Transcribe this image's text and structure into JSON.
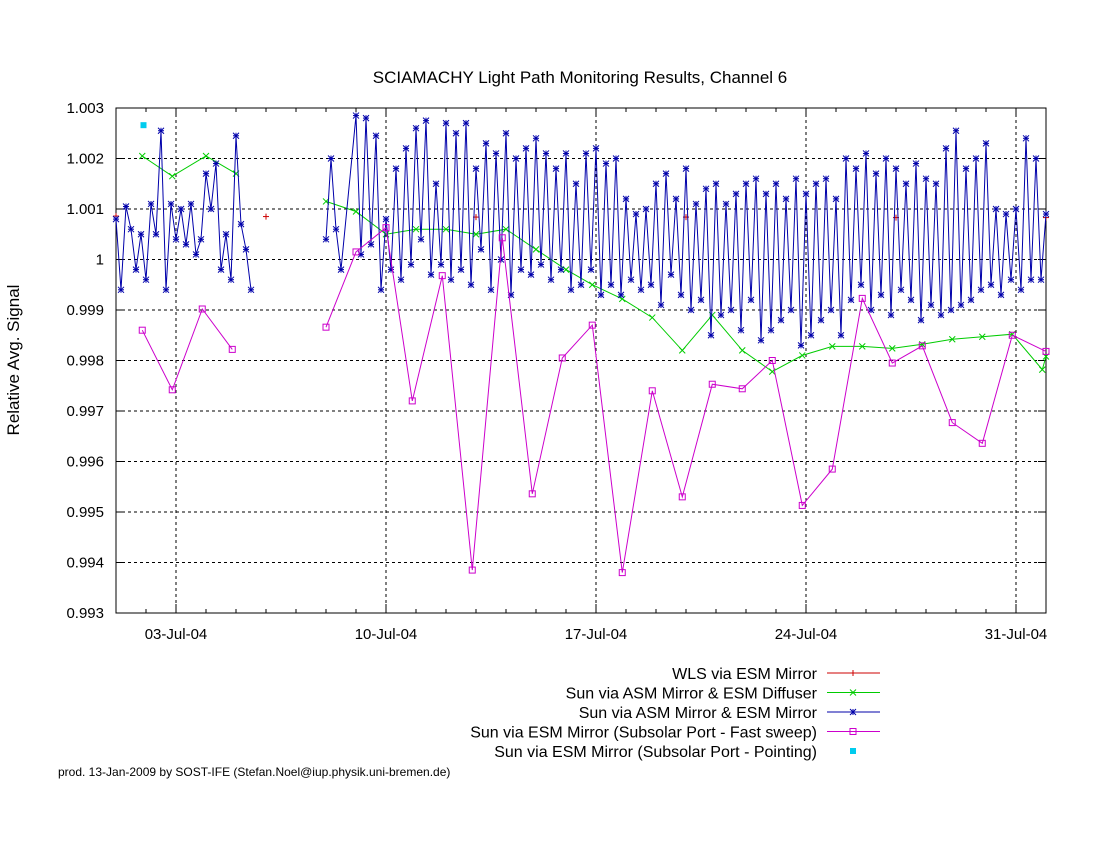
{
  "chart_data": {
    "type": "line",
    "title": "SCIAMACHY Light Path Monitoring Results, Channel 6",
    "ylabel": "Relative Avg. Signal",
    "xlabel": "",
    "ylim": [
      0.993,
      1.003
    ],
    "xlim": [
      "2004-07-01",
      "2004-08-01"
    ],
    "y_ticks": [
      "0.993",
      "0.994",
      "0.995",
      "0.996",
      "0.997",
      "0.998",
      "0.999",
      "1",
      "1.001",
      "1.002",
      "1.003"
    ],
    "x_ticks": [
      "03-Jul-04",
      "10-Jul-04",
      "17-Jul-04",
      "24-Jul-04",
      "31-Jul-04"
    ],
    "grid": true,
    "legend_position": "below",
    "series": [
      {
        "name": "WLS via ESM Mirror",
        "color": "#cc0000",
        "marker": "plus",
        "points": [
          [
            "2004-07-01",
            1.00086
          ],
          [
            "2004-07-06",
            1.00085
          ],
          [
            "2004-07-13",
            1.00084
          ],
          [
            "2004-07-20",
            1.00084
          ],
          [
            "2004-07-27",
            1.00083
          ],
          [
            "2004-08-01",
            1.00083
          ]
        ]
      },
      {
        "name": "Sun via ASM Mirror & ESM Diffuser",
        "color": "#00cc00",
        "marker": "x",
        "points": [
          [
            "2004-07-01T21:00",
            1.00205
          ],
          [
            "2004-07-02T21:00",
            1.00165
          ],
          [
            "2004-07-04T00:00",
            1.00205
          ],
          [
            "2004-07-05T00:00",
            1.0017
          ],
          [
            "2004-07-08T00:00",
            1.00115
          ],
          [
            "2004-07-09T00:00",
            1.00095
          ],
          [
            "2004-07-10T00:00",
            1.0005
          ],
          [
            "2004-07-11T00:00",
            1.0006
          ],
          [
            "2004-07-12T00:00",
            1.0006
          ],
          [
            "2004-07-13T00:00",
            1.0005
          ],
          [
            "2004-07-14T00:00",
            1.0006
          ],
          [
            "2004-07-15T00:00",
            1.0002
          ],
          [
            "2004-07-16T00:00",
            0.9998
          ],
          [
            "2004-07-16T21:00",
            0.9995
          ],
          [
            "2004-07-17T21:00",
            0.99922
          ],
          [
            "2004-07-18T21:00",
            0.99885
          ],
          [
            "2004-07-19T21:00",
            0.9982
          ],
          [
            "2004-07-20T21:00",
            0.9989
          ],
          [
            "2004-07-21T21:00",
            0.9982
          ],
          [
            "2004-07-22T21:00",
            0.99778
          ],
          [
            "2004-07-23T21:00",
            0.9981
          ],
          [
            "2004-07-24T21:00",
            0.99828
          ],
          [
            "2004-07-25T21:00",
            0.99828
          ],
          [
            "2004-07-26T21:00",
            0.99824
          ],
          [
            "2004-07-27T21:00",
            0.99832
          ],
          [
            "2004-07-28T21:00",
            0.99842
          ],
          [
            "2004-07-29T21:00",
            0.99847
          ],
          [
            "2004-07-30T21:00",
            0.99852
          ],
          [
            "2004-07-31T21:00",
            0.99782
          ],
          [
            "2004-08-01T00:00",
            0.99808
          ]
        ]
      },
      {
        "name": "Sun via ASM Mirror & ESM Mirror",
        "color": "#0000aa",
        "marker": "star",
        "points": [
          [
            "2004-07-01T00:00",
            1.0008
          ],
          [
            "2004-07-01T04:00",
            0.9994
          ],
          [
            "2004-07-01T08:00",
            1.00105
          ],
          [
            "2004-07-01T12:00",
            1.0006
          ],
          [
            "2004-07-01T16:00",
            0.9998
          ],
          [
            "2004-07-01T20:00",
            1.0005
          ],
          [
            "2004-07-02T00:00",
            0.9996
          ],
          [
            "2004-07-02T04:00",
            1.0011
          ],
          [
            "2004-07-02T08:00",
            1.0005
          ],
          [
            "2004-07-02T12:00",
            1.00255
          ],
          [
            "2004-07-02T16:00",
            0.9994
          ],
          [
            "2004-07-02T20:00",
            1.0011
          ],
          [
            "2004-07-03T00:00",
            1.0004
          ],
          [
            "2004-07-03T04:00",
            1.001
          ],
          [
            "2004-07-03T08:00",
            1.0003
          ],
          [
            "2004-07-03T12:00",
            1.0011
          ],
          [
            "2004-07-03T16:00",
            1.0001
          ],
          [
            "2004-07-03T20:00",
            1.0004
          ],
          [
            "2004-07-04T00:00",
            1.0017
          ],
          [
            "2004-07-04T04:00",
            1.001
          ],
          [
            "2004-07-04T08:00",
            1.0019
          ],
          [
            "2004-07-04T12:00",
            0.9998
          ],
          [
            "2004-07-04T16:00",
            1.0005
          ],
          [
            "2004-07-04T20:00",
            0.9996
          ],
          [
            "2004-07-05T00:00",
            1.00245
          ],
          [
            "2004-07-05T04:00",
            1.0007
          ],
          [
            "2004-07-05T08:00",
            1.0002
          ],
          [
            "2004-07-05T12:00",
            0.9994
          ],
          [
            "2004-07-08T00:00",
            1.0004
          ],
          [
            "2004-07-08T04:00",
            1.002
          ],
          [
            "2004-07-08T08:00",
            1.0006
          ],
          [
            "2004-07-08T12:00",
            0.9998
          ],
          [
            "2004-07-09T00:00",
            1.00285
          ],
          [
            "2004-07-09T04:00",
            1.0001
          ],
          [
            "2004-07-09T08:00",
            1.0028
          ],
          [
            "2004-07-09T12:00",
            1.0003
          ],
          [
            "2004-07-09T16:00",
            1.00245
          ],
          [
            "2004-07-09T20:00",
            0.9994
          ],
          [
            "2004-07-10T00:00",
            1.0008
          ],
          [
            "2004-07-10T04:00",
            0.9998
          ],
          [
            "2004-07-10T08:00",
            1.0018
          ],
          [
            "2004-07-10T12:00",
            0.9996
          ],
          [
            "2004-07-10T16:00",
            1.0022
          ],
          [
            "2004-07-10T20:00",
            0.9999
          ],
          [
            "2004-07-11T00:00",
            1.0026
          ],
          [
            "2004-07-11T04:00",
            1.0004
          ],
          [
            "2004-07-11T08:00",
            1.00275
          ],
          [
            "2004-07-11T12:00",
            0.9997
          ],
          [
            "2004-07-11T16:00",
            1.0015
          ],
          [
            "2004-07-11T20:00",
            0.9999
          ],
          [
            "2004-07-12T00:00",
            1.0027
          ],
          [
            "2004-07-12T04:00",
            0.9996
          ],
          [
            "2004-07-12T08:00",
            1.0025
          ],
          [
            "2004-07-12T12:00",
            0.9998
          ],
          [
            "2004-07-12T16:00",
            1.0027
          ],
          [
            "2004-07-12T20:00",
            0.9995
          ],
          [
            "2004-07-13T00:00",
            1.0018
          ],
          [
            "2004-07-13T04:00",
            1.0002
          ],
          [
            "2004-07-13T08:00",
            1.0023
          ],
          [
            "2004-07-13T12:00",
            0.9994
          ],
          [
            "2004-07-13T16:00",
            1.0021
          ],
          [
            "2004-07-13T20:00",
            1.0
          ],
          [
            "2004-07-14T00:00",
            1.0025
          ],
          [
            "2004-07-14T04:00",
            0.9993
          ],
          [
            "2004-07-14T08:00",
            1.002
          ],
          [
            "2004-07-14T12:00",
            0.9998
          ],
          [
            "2004-07-14T16:00",
            1.0022
          ],
          [
            "2004-07-14T20:00",
            0.9997
          ],
          [
            "2004-07-15T00:00",
            1.0024
          ],
          [
            "2004-07-15T04:00",
            0.9999
          ],
          [
            "2004-07-15T08:00",
            1.0021
          ],
          [
            "2004-07-15T12:00",
            0.9996
          ],
          [
            "2004-07-15T16:00",
            1.0018
          ],
          [
            "2004-07-15T20:00",
            0.9998
          ],
          [
            "2004-07-16T00:00",
            1.0021
          ],
          [
            "2004-07-16T04:00",
            0.9994
          ],
          [
            "2004-07-16T08:00",
            1.0015
          ],
          [
            "2004-07-16T12:00",
            0.9995
          ],
          [
            "2004-07-16T16:00",
            1.0021
          ],
          [
            "2004-07-16T20:00",
            0.9998
          ],
          [
            "2004-07-17T00:00",
            1.0022
          ],
          [
            "2004-07-17T04:00",
            0.9993
          ],
          [
            "2004-07-17T08:00",
            1.0019
          ],
          [
            "2004-07-17T12:00",
            0.9995
          ],
          [
            "2004-07-17T16:00",
            1.002
          ],
          [
            "2004-07-17T20:00",
            0.9993
          ],
          [
            "2004-07-18T00:00",
            1.0012
          ],
          [
            "2004-07-18T04:00",
            0.9996
          ],
          [
            "2004-07-18T08:00",
            1.0009
          ],
          [
            "2004-07-18T12:00",
            0.9994
          ],
          [
            "2004-07-18T16:00",
            1.001
          ],
          [
            "2004-07-18T20:00",
            0.9995
          ],
          [
            "2004-07-19T00:00",
            1.0015
          ],
          [
            "2004-07-19T04:00",
            0.9991
          ],
          [
            "2004-07-19T08:00",
            1.0017
          ],
          [
            "2004-07-19T12:00",
            0.9997
          ],
          [
            "2004-07-19T16:00",
            1.0012
          ],
          [
            "2004-07-19T20:00",
            0.9993
          ],
          [
            "2004-07-20T00:00",
            1.0018
          ],
          [
            "2004-07-20T04:00",
            0.999
          ],
          [
            "2004-07-20T08:00",
            1.0011
          ],
          [
            "2004-07-20T12:00",
            0.9992
          ],
          [
            "2004-07-20T16:00",
            1.0014
          ],
          [
            "2004-07-20T20:00",
            0.9985
          ],
          [
            "2004-07-21T00:00",
            1.0015
          ],
          [
            "2004-07-21T04:00",
            0.9989
          ],
          [
            "2004-07-21T08:00",
            1.0011
          ],
          [
            "2004-07-21T12:00",
            0.999
          ],
          [
            "2004-07-21T16:00",
            1.0013
          ],
          [
            "2004-07-21T20:00",
            0.9986
          ],
          [
            "2004-07-22T00:00",
            1.0015
          ],
          [
            "2004-07-22T04:00",
            0.9992
          ],
          [
            "2004-07-22T08:00",
            1.0016
          ],
          [
            "2004-07-22T12:00",
            0.9984
          ],
          [
            "2004-07-22T16:00",
            1.0013
          ],
          [
            "2004-07-22T20:00",
            0.9986
          ],
          [
            "2004-07-23T00:00",
            1.0015
          ],
          [
            "2004-07-23T04:00",
            0.9988
          ],
          [
            "2004-07-23T08:00",
            1.0012
          ],
          [
            "2004-07-23T12:00",
            0.999
          ],
          [
            "2004-07-23T16:00",
            1.0016
          ],
          [
            "2004-07-23T20:00",
            0.9983
          ],
          [
            "2004-07-24T00:00",
            1.0013
          ],
          [
            "2004-07-24T04:00",
            0.9985
          ],
          [
            "2004-07-24T08:00",
            1.0015
          ],
          [
            "2004-07-24T12:00",
            0.9988
          ],
          [
            "2004-07-24T16:00",
            1.0016
          ],
          [
            "2004-07-24T20:00",
            0.999
          ],
          [
            "2004-07-25T00:00",
            1.0012
          ],
          [
            "2004-07-25T04:00",
            0.9985
          ],
          [
            "2004-07-25T08:00",
            1.002
          ],
          [
            "2004-07-25T12:00",
            0.9992
          ],
          [
            "2004-07-25T16:00",
            1.0018
          ],
          [
            "2004-07-25T20:00",
            0.9995
          ],
          [
            "2004-07-26T00:00",
            1.0021
          ],
          [
            "2004-07-26T04:00",
            0.999
          ],
          [
            "2004-07-26T08:00",
            1.0017
          ],
          [
            "2004-07-26T12:00",
            0.9993
          ],
          [
            "2004-07-26T16:00",
            1.002
          ],
          [
            "2004-07-26T20:00",
            0.9989
          ],
          [
            "2004-07-27T00:00",
            1.0018
          ],
          [
            "2004-07-27T04:00",
            0.9994
          ],
          [
            "2004-07-27T08:00",
            1.0015
          ],
          [
            "2004-07-27T12:00",
            0.9992
          ],
          [
            "2004-07-27T16:00",
            1.0019
          ],
          [
            "2004-07-27T20:00",
            0.9988
          ],
          [
            "2004-07-28T00:00",
            1.0016
          ],
          [
            "2004-07-28T04:00",
            0.9991
          ],
          [
            "2004-07-28T08:00",
            1.0015
          ],
          [
            "2004-07-28T12:00",
            0.9989
          ],
          [
            "2004-07-28T16:00",
            1.0022
          ],
          [
            "2004-07-28T20:00",
            0.999
          ],
          [
            "2004-07-29T00:00",
            1.00255
          ],
          [
            "2004-07-29T04:00",
            0.9991
          ],
          [
            "2004-07-29T08:00",
            1.0018
          ],
          [
            "2004-07-29T12:00",
            0.9992
          ],
          [
            "2004-07-29T16:00",
            1.002
          ],
          [
            "2004-07-29T20:00",
            0.9994
          ],
          [
            "2004-07-30T00:00",
            1.0023
          ],
          [
            "2004-07-30T04:00",
            0.9995
          ],
          [
            "2004-07-30T08:00",
            1.001
          ],
          [
            "2004-07-30T12:00",
            0.9993
          ],
          [
            "2004-07-30T16:00",
            1.0009
          ],
          [
            "2004-07-30T20:00",
            0.9996
          ],
          [
            "2004-07-31T00:00",
            1.001
          ],
          [
            "2004-07-31T04:00",
            0.9994
          ],
          [
            "2004-07-31T08:00",
            1.0024
          ],
          [
            "2004-07-31T12:00",
            0.9996
          ],
          [
            "2004-07-31T16:00",
            1.002
          ],
          [
            "2004-07-31T20:00",
            0.9996
          ],
          [
            "2004-08-01T00:00",
            1.0009
          ]
        ]
      },
      {
        "name": "Sun via ESM Mirror (Subsolar Port - Fast sweep)",
        "color": "#cc00cc",
        "marker": "square",
        "points": [
          [
            "2004-07-01T21:00",
            0.9986
          ],
          [
            "2004-07-02T21:00",
            0.99742
          ],
          [
            "2004-07-03T21:00",
            0.99902
          ],
          [
            "2004-07-04T21:00",
            0.99822
          ],
          [
            "2004-07-08T00:00",
            0.99866
          ],
          [
            "2004-07-09T00:00",
            1.00015
          ],
          [
            "2004-07-10T00:00",
            1.00063
          ],
          [
            "2004-07-10T21:00",
            0.9972
          ],
          [
            "2004-07-11T21:00",
            0.99968
          ],
          [
            "2004-07-12T21:00",
            0.99385
          ],
          [
            "2004-07-13T21:00",
            1.00043
          ],
          [
            "2004-07-14T21:00",
            0.99536
          ],
          [
            "2004-07-15T21:00",
            0.99805
          ],
          [
            "2004-07-16T21:00",
            0.9987
          ],
          [
            "2004-07-17T21:00",
            0.9938
          ],
          [
            "2004-07-18T21:00",
            0.9974
          ],
          [
            "2004-07-19T21:00",
            0.9953
          ],
          [
            "2004-07-20T21:00",
            0.99753
          ],
          [
            "2004-07-21T21:00",
            0.99744
          ],
          [
            "2004-07-22T21:00",
            0.998
          ],
          [
            "2004-07-23T21:00",
            0.99513
          ],
          [
            "2004-07-24T21:00",
            0.99585
          ],
          [
            "2004-07-25T21:00",
            0.99923
          ],
          [
            "2004-07-26T21:00",
            0.99795
          ],
          [
            "2004-07-27T21:00",
            0.99829
          ],
          [
            "2004-07-28T21:00",
            0.99677
          ],
          [
            "2004-07-29T21:00",
            0.99636
          ],
          [
            "2004-07-30T21:00",
            0.9985
          ],
          [
            "2004-08-01T00:00",
            0.99818
          ]
        ]
      },
      {
        "name": "Sun via ESM Mirror (Subsolar Port - Pointing)",
        "color": "#00ccee",
        "marker": "filled-square",
        "points": [
          [
            "2004-07-01T22:00",
            1.00266
          ]
        ]
      }
    ]
  },
  "footer": {
    "credit": "prod. 13-Jan-2009 by SOST-IFE (Stefan.Noel@iup.physik.uni-bremen.de)"
  }
}
